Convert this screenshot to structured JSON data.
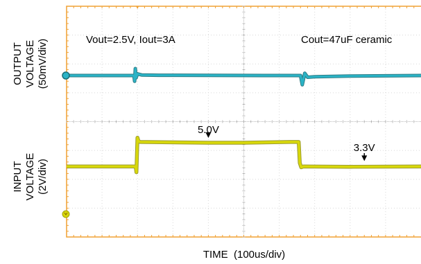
{
  "chart_data": {
    "type": "line",
    "xlabel": "TIME  (100us/div)",
    "x_unit": "us",
    "xlim": [
      0,
      1000
    ],
    "panels": [
      {
        "ylabel": [
          "OUTPUT",
          "VOLTAGE",
          "(50mV/div)"
        ],
        "y_unit": "mV (relative)",
        "ylim": [
          -100,
          100
        ],
        "series": [
          {
            "color": "#2ab3c6",
            "x": [
              0,
              190,
              192,
              194,
              196,
              200,
              205,
              212,
              260,
              600,
              620,
              640,
              660,
              665,
              672,
              680,
              700,
              800,
              1000
            ],
            "y": [
              0,
              0,
              -10,
              12,
              -4,
              3,
              2,
              1,
              0.5,
              0,
              0,
              0,
              0,
              -16,
              4,
              -3,
              -2,
              -1,
              0
            ]
          }
        ],
        "annotations": [
          {
            "text": "Vout=2.5V, Iout=3A"
          },
          {
            "text": "Cout=47uF ceramic"
          }
        ]
      },
      {
        "ylabel": [
          "INPUT",
          "VOLTAGE",
          "(2V/div)"
        ],
        "y_unit": "V",
        "ylim": [
          -2,
          8
        ],
        "series": [
          {
            "color": "#d8d80a",
            "x": [
              0,
              195,
              197,
              200,
              203,
              208,
              400,
              500,
              630,
              655,
              658,
              662,
              668,
              800,
              1000
            ],
            "y": [
              3.3,
              3.3,
              2.9,
              5.3,
              5.05,
              5.0,
              4.95,
              4.95,
              5.0,
              5.0,
              3.55,
              3.25,
              3.3,
              3.28,
              3.3
            ]
          }
        ],
        "annotations": [
          {
            "text": "5.0V",
            "x": 400,
            "y": 5.0
          },
          {
            "text": "3.3V",
            "x": 840,
            "y": 3.3
          }
        ]
      }
    ],
    "grid": true,
    "grid_divisions": {
      "x": 10,
      "y": 8
    }
  }
}
